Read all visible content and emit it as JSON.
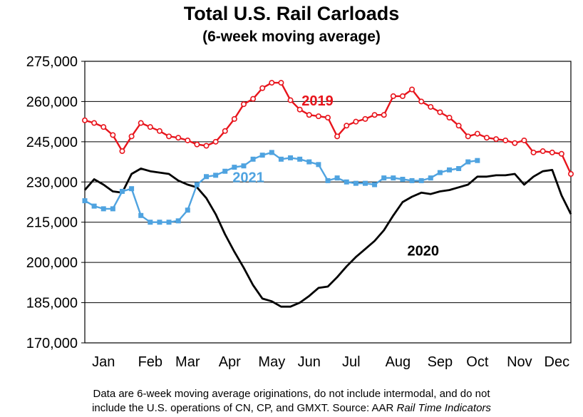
{
  "title": "Total U.S. Rail Carloads",
  "subtitle": "(6-week moving average)",
  "note": {
    "line1": "Data are 6-week moving average originations, do not include intermodal, and do not",
    "line2": "include the U.S. operations of CN, CP, and GMXT.  Source: AAR ",
    "source_italic": "Rail Time Indicators"
  },
  "colors": {
    "s2019": "#e8141c",
    "s2020": "#000000",
    "s2021": "#4fa3e0"
  },
  "chart_data": {
    "type": "line",
    "title": "Total U.S. Rail Carloads",
    "subtitle": "(6-week moving average)",
    "xlabel": "",
    "ylabel": "",
    "ylim": [
      170000,
      275000
    ],
    "yticks": [
      170000,
      185000,
      200000,
      215000,
      230000,
      245000,
      260000,
      275000
    ],
    "ytick_labels": [
      "170,000",
      "185,000",
      "200,000",
      "215,000",
      "230,000",
      "245,000",
      "260,000",
      "275,000"
    ],
    "xlim": [
      1,
      53
    ],
    "categories": [
      "Jan",
      "Feb",
      "Mar",
      "Apr",
      "May",
      "Jun",
      "Jul",
      "Aug",
      "Sep",
      "Oct",
      "Nov",
      "Dec"
    ],
    "category_positions": [
      3,
      8,
      12,
      16.5,
      21,
      25,
      29.5,
      34.5,
      39,
      43,
      47.5,
      51.5
    ],
    "grid": true,
    "series": [
      {
        "name": "2019",
        "label": "2019",
        "marker": "circle",
        "x": [
          1,
          2,
          3,
          4,
          5,
          6,
          7,
          8,
          9,
          10,
          11,
          12,
          13,
          14,
          15,
          16,
          17,
          18,
          19,
          20,
          21,
          22,
          23,
          24,
          25,
          26,
          27,
          28,
          29,
          30,
          31,
          32,
          33,
          34,
          35,
          36,
          37,
          38,
          39,
          40,
          41,
          42,
          43,
          44,
          45,
          46,
          47,
          48,
          49,
          50,
          51,
          52,
          53
        ],
        "values": [
          253000,
          252000,
          250500,
          247500,
          241500,
          247000,
          252000,
          250500,
          249000,
          247000,
          246500,
          245500,
          244000,
          243500,
          245000,
          249000,
          253500,
          259000,
          261000,
          265000,
          267000,
          267000,
          260500,
          257000,
          255000,
          254500,
          254000,
          247000,
          251000,
          252500,
          253500,
          255000,
          255000,
          262000,
          262000,
          264500,
          260000,
          258000,
          256000,
          254000,
          251000,
          247000,
          248000,
          246500,
          246000,
          245500,
          244500,
          245500,
          241000,
          241500,
          241000,
          240500,
          233000
        ]
      },
      {
        "name": "2020",
        "label": "2020",
        "marker": "none",
        "x": [
          1,
          2,
          3,
          4,
          5,
          6,
          7,
          8,
          9,
          10,
          11,
          12,
          13,
          14,
          15,
          16,
          17,
          18,
          19,
          20,
          21,
          22,
          23,
          24,
          25,
          26,
          27,
          28,
          29,
          30,
          31,
          32,
          33,
          34,
          35,
          36,
          37,
          38,
          39,
          40,
          41,
          42,
          43,
          44,
          45,
          46,
          47,
          48,
          49,
          50,
          51,
          52,
          53
        ],
        "values": [
          227000,
          231000,
          229000,
          226500,
          226000,
          233000,
          235000,
          234000,
          233500,
          233000,
          230500,
          229000,
          228000,
          224000,
          218000,
          210500,
          204000,
          198000,
          191500,
          186500,
          185500,
          183500,
          183500,
          185000,
          187500,
          190500,
          191000,
          194500,
          198500,
          202000,
          205000,
          208000,
          212000,
          217500,
          222500,
          224500,
          226000,
          225500,
          226500,
          227000,
          228000,
          229000,
          232000,
          232000,
          232500,
          232500,
          233000,
          229000,
          232000,
          234000,
          234500,
          225000,
          218000
        ]
      },
      {
        "name": "2021",
        "label": "2021",
        "marker": "square",
        "x": [
          1,
          2,
          3,
          4,
          5,
          6,
          7,
          8,
          9,
          10,
          11,
          12,
          13,
          14,
          15,
          16,
          17,
          18,
          19,
          20,
          21,
          22,
          23,
          24,
          25,
          26,
          27,
          28,
          29,
          30,
          31,
          32,
          33,
          34,
          35,
          36,
          37,
          38,
          39,
          40,
          41,
          42,
          43
        ],
        "values": [
          223000,
          221000,
          220000,
          220000,
          226500,
          227500,
          217500,
          215000,
          215000,
          215000,
          215500,
          219500,
          229000,
          232000,
          232500,
          234000,
          235500,
          236000,
          238500,
          240000,
          241000,
          238500,
          239000,
          238500,
          237500,
          236500,
          230500,
          231500,
          230000,
          229500,
          229500,
          229000,
          231500,
          231500,
          231000,
          230500,
          230500,
          231500,
          233500,
          234500,
          235000,
          237500,
          238000
        ]
      }
    ],
    "annotations": [
      {
        "text": "2019",
        "series": "2019"
      },
      {
        "text": "2020",
        "series": "2020"
      },
      {
        "text": "2021",
        "series": "2021"
      }
    ]
  }
}
